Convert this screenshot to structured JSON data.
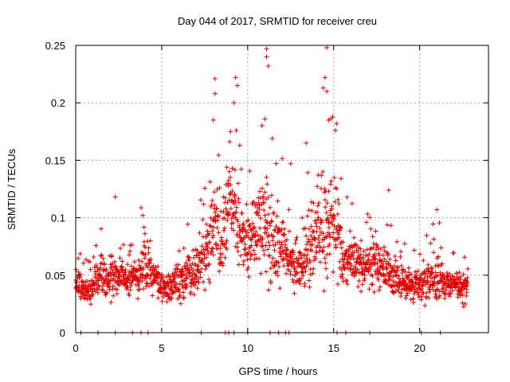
{
  "chart_data": {
    "type": "scatter",
    "title": "Day 044 of 2017, SRMTID for receiver creu",
    "xlabel": "GPS time / hours",
    "ylabel": "SRMTID / TECUs",
    "xlim": [
      0,
      24
    ],
    "ylim": [
      0,
      0.25
    ],
    "grid": true,
    "marker": "+",
    "color": "#e00000",
    "x_ticks": [
      0,
      5,
      10,
      15,
      20
    ],
    "y_ticks": [
      0,
      0.05,
      0.1,
      0.15,
      0.2,
      0.25
    ],
    "x_tick_labels": [
      "0",
      "5",
      "10",
      "15",
      "20"
    ],
    "y_tick_labels": [
      "0",
      "0.05",
      "0.1",
      "0.15",
      "0.2",
      "0.25"
    ],
    "envelope_hours": [
      0,
      0.5,
      1,
      1.5,
      2,
      2.5,
      3,
      3.5,
      4,
      4.5,
      5,
      5.5,
      6,
      6.5,
      7,
      7.5,
      8,
      8.5,
      9,
      9.5,
      10,
      10.5,
      11,
      11.5,
      12,
      12.5,
      13,
      13.5,
      14,
      14.5,
      15,
      15.5,
      16,
      16.5,
      17,
      17.5,
      18,
      18.5,
      19,
      19.5,
      20,
      20.5,
      21,
      21.5,
      22,
      22.5
    ],
    "typical_values": [
      0.045,
      0.035,
      0.04,
      0.05,
      0.045,
      0.05,
      0.045,
      0.05,
      0.055,
      0.05,
      0.04,
      0.04,
      0.045,
      0.05,
      0.055,
      0.06,
      0.09,
      0.08,
      0.11,
      0.09,
      0.075,
      0.09,
      0.1,
      0.07,
      0.08,
      0.06,
      0.055,
      0.07,
      0.085,
      0.095,
      0.1,
      0.06,
      0.065,
      0.06,
      0.055,
      0.06,
      0.055,
      0.05,
      0.045,
      0.04,
      0.04,
      0.045,
      0.05,
      0.04,
      0.04,
      0.04
    ],
    "spread": [
      0.02,
      0.015,
      0.02,
      0.025,
      0.03,
      0.02,
      0.02,
      0.025,
      0.035,
      0.02,
      0.02,
      0.02,
      0.025,
      0.025,
      0.03,
      0.04,
      0.06,
      0.05,
      0.06,
      0.05,
      0.035,
      0.05,
      0.07,
      0.05,
      0.04,
      0.03,
      0.03,
      0.04,
      0.06,
      0.07,
      0.07,
      0.04,
      0.03,
      0.03,
      0.03,
      0.035,
      0.03,
      0.025,
      0.02,
      0.02,
      0.02,
      0.025,
      0.03,
      0.02,
      0.02,
      0.02
    ],
    "peaks": [
      {
        "x": 8.1,
        "y": 0.221
      },
      {
        "x": 8.1,
        "y": 0.208
      },
      {
        "x": 8.0,
        "y": 0.185
      },
      {
        "x": 9.3,
        "y": 0.222
      },
      {
        "x": 9.4,
        "y": 0.215
      },
      {
        "x": 9.2,
        "y": 0.2
      },
      {
        "x": 9.0,
        "y": 0.175
      },
      {
        "x": 11.1,
        "y": 0.247
      },
      {
        "x": 11.1,
        "y": 0.24
      },
      {
        "x": 11.2,
        "y": 0.232
      },
      {
        "x": 11.0,
        "y": 0.186
      },
      {
        "x": 14.6,
        "y": 0.248
      },
      {
        "x": 14.5,
        "y": 0.222
      },
      {
        "x": 14.6,
        "y": 0.21
      },
      {
        "x": 14.7,
        "y": 0.185
      },
      {
        "x": 15.1,
        "y": 0.176
      },
      {
        "x": 13.4,
        "y": 0.165
      },
      {
        "x": 2.3,
        "y": 0.118
      },
      {
        "x": 3.9,
        "y": 0.102
      },
      {
        "x": 18.2,
        "y": 0.124
      },
      {
        "x": 21.0,
        "y": 0.107
      },
      {
        "x": 12.5,
        "y": 0.147
      }
    ],
    "zero_hours": [
      0.3,
      1.3,
      2.3,
      3.3,
      3.8,
      4.2,
      7.3,
      8.7,
      8.9,
      9.2,
      10.0,
      11.3,
      11.8,
      12.2,
      12.4,
      15.2,
      15.7,
      17.1,
      20.1,
      21.2
    ]
  }
}
